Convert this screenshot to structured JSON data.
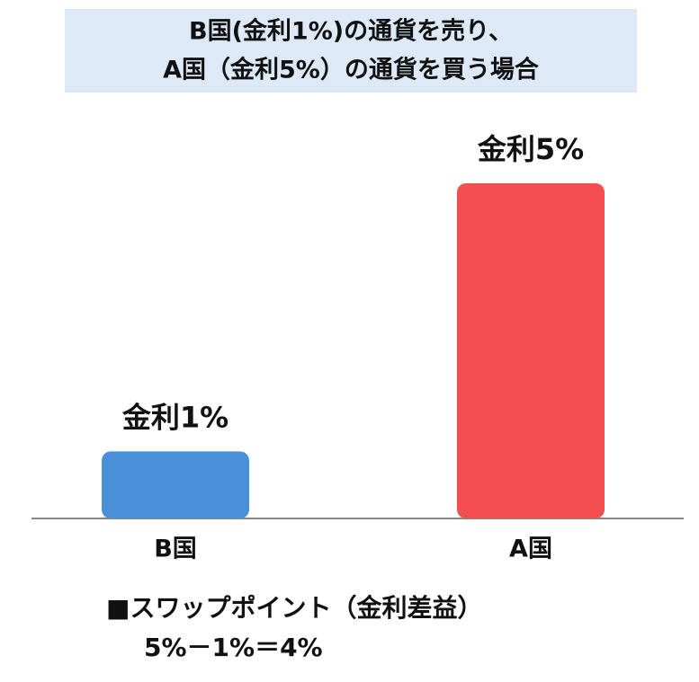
{
  "chart_data": {
    "type": "bar",
    "title": [
      "B国(金利1%)の通貨を売り、",
      "A国（金利5%）の通貨を買う場合"
    ],
    "categories": [
      "B国",
      "A国"
    ],
    "values": [
      1,
      5
    ],
    "value_labels": [
      "金利1%",
      "金利5%"
    ],
    "colors": [
      "#4a90d9",
      "#f44f4f"
    ],
    "annotations": [
      "■スワップポイント（金利差益）",
      "5%－1%＝4%"
    ]
  }
}
